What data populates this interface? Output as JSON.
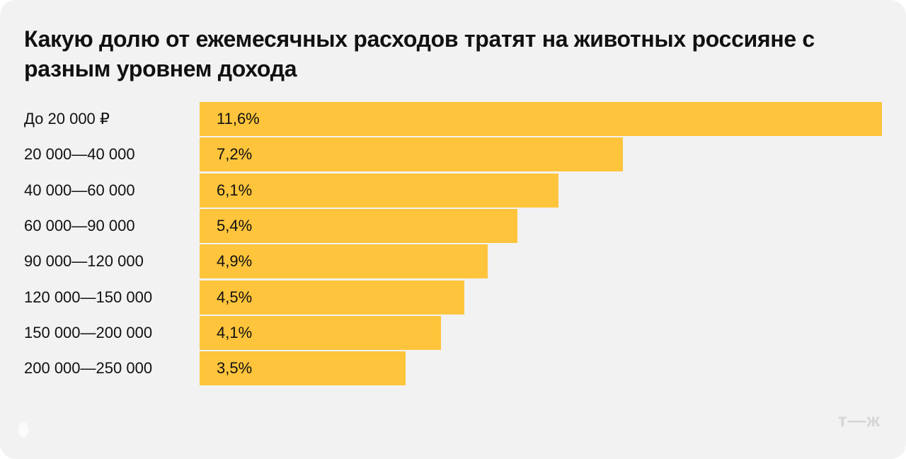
{
  "title": "Какую долю от ежемесячных расходов тратят на животных россияне с разным уровнем дохода",
  "logo_text": "т—ж",
  "colors": {
    "bar": "#fdc43c",
    "background": "#f2f2f2",
    "text": "#111111"
  },
  "chart_data": {
    "type": "bar",
    "orientation": "horizontal",
    "title": "Какую долю от ежемесячных расходов тратят на животных россияне с разным уровнем дохода",
    "categories": [
      "До 20 000 ₽",
      "20 000—40 000",
      "40 000—60 000",
      "60 000—90 000",
      "90 000—120 000",
      "120 000—150 000",
      "150 000—200 000",
      "200 000—250 000"
    ],
    "values": [
      11.6,
      7.2,
      6.1,
      5.4,
      4.9,
      4.5,
      4.1,
      3.5
    ],
    "value_labels": [
      "11,6%",
      "7,2%",
      "6,1%",
      "5,4%",
      "4,9%",
      "4,5%",
      "4,1%",
      "3,5%"
    ],
    "unit": "%",
    "xlim": [
      0,
      11.6
    ],
    "grid": false,
    "legend": "none"
  }
}
